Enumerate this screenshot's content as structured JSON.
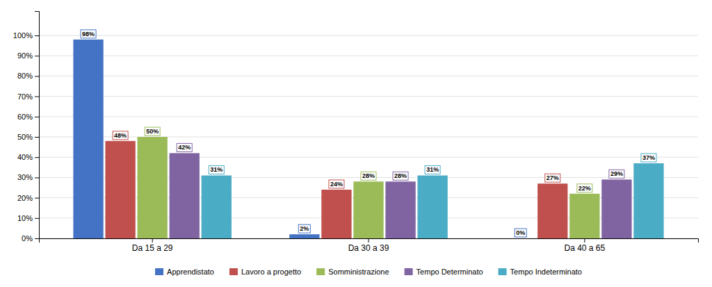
{
  "chart_data": {
    "type": "bar",
    "categories": [
      "Da 15 a 29",
      "Da 30 a 39",
      "Da 40 a 65"
    ],
    "series": [
      {
        "name": "Apprendistato",
        "color": "#4472C4",
        "values": [
          98,
          2,
          0
        ],
        "value_labels": [
          "98%",
          "2%",
          "0%"
        ]
      },
      {
        "name": "Lavoro a progetto",
        "color": "#C0504D",
        "values": [
          48,
          24,
          27
        ],
        "value_labels": [
          "48%",
          "24%",
          "27%"
        ]
      },
      {
        "name": "Somministrazione",
        "color": "#9BBB59",
        "values": [
          50,
          28,
          22
        ],
        "value_labels": [
          "50%",
          "28%",
          "22%"
        ]
      },
      {
        "name": "Tempo Determinato",
        "color": "#8064A2",
        "values": [
          42,
          28,
          29
        ],
        "value_labels": [
          "42%",
          "28%",
          "29%"
        ]
      },
      {
        "name": "Tempo Indeterminato",
        "color": "#4BACC6",
        "values": [
          31,
          31,
          37
        ],
        "value_labels": [
          "31%",
          "31%",
          "37%"
        ]
      }
    ],
    "ylim": [
      0,
      112
    ],
    "yticks": [
      {
        "value": 0,
        "label": "0%"
      },
      {
        "value": 10,
        "label": "10%"
      },
      {
        "value": 20,
        "label": "20%"
      },
      {
        "value": 30,
        "label": "30%"
      },
      {
        "value": 40,
        "label": "40%"
      },
      {
        "value": 50,
        "label": "50%"
      },
      {
        "value": 60,
        "label": "60%"
      },
      {
        "value": 70,
        "label": "70%"
      },
      {
        "value": 80,
        "label": "80%"
      },
      {
        "value": 90,
        "label": "90%"
      },
      {
        "value": 100,
        "label": "100%"
      }
    ],
    "grid": true,
    "data_labels": true,
    "legend": "bottom"
  }
}
